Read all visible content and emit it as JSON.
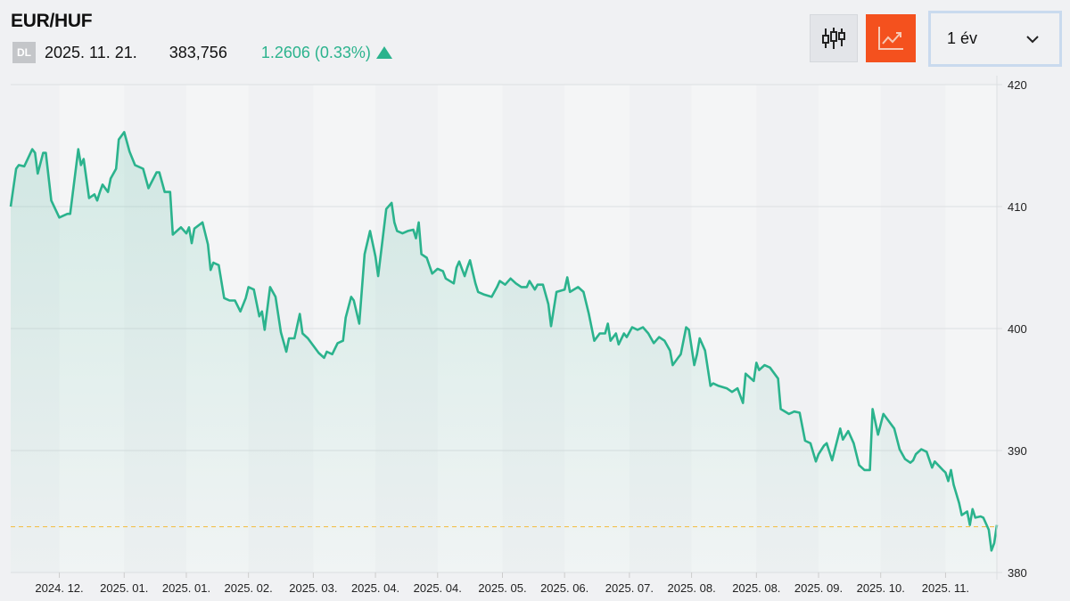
{
  "header": {
    "title": "EUR/HUF",
    "badge": "DL",
    "date": "2025. 11. 21.",
    "price": "383,756",
    "change": "1.2606 (0.33%)",
    "change_direction": "up"
  },
  "toolbar": {
    "candlestick_icon": "candlestick-chart-icon",
    "line_icon": "line-chart-icon",
    "period_selected": "1 év"
  },
  "colors": {
    "line": "#2bb38d",
    "up": "#2bb38d",
    "active_button": "#f4511e",
    "reference_line": "#f2c14e"
  },
  "chart_data": {
    "type": "area",
    "title": "EUR/HUF",
    "xlabel": "",
    "ylabel": "",
    "xlim_days": [
      0,
      365
    ],
    "ylim": [
      380,
      420
    ],
    "yticks": [
      420,
      410,
      400,
      390,
      380
    ],
    "xtick_labels": [
      "2024. 12.",
      "2025. 01.",
      "2025. 01.",
      "2025. 02.",
      "2025. 03.",
      "2025. 04.",
      "2025. 04.",
      "2025. 05.",
      "2025. 06.",
      "2025. 07.",
      "2025. 08.",
      "2025. 08.",
      "2025. 09.",
      "2025. 10.",
      "2025. 11."
    ],
    "xtick_days": [
      18,
      42,
      65,
      88,
      112,
      135,
      158,
      182,
      205,
      229,
      252,
      276,
      299,
      322,
      346
    ],
    "reference_value": 383.756,
    "grid": true,
    "axis_position": "right",
    "points": [
      [
        0,
        410.0
      ],
      [
        2,
        413.1
      ],
      [
        3,
        413.4
      ],
      [
        5,
        413.3
      ],
      [
        8,
        414.7
      ],
      [
        9,
        414.4
      ],
      [
        10,
        412.7
      ],
      [
        12,
        414.4
      ],
      [
        13,
        414.4
      ],
      [
        15,
        410.5
      ],
      [
        18,
        409.1
      ],
      [
        21,
        409.4
      ],
      [
        22,
        409.4
      ],
      [
        25,
        414.7
      ],
      [
        26,
        413.4
      ],
      [
        27,
        413.9
      ],
      [
        29,
        410.7
      ],
      [
        31,
        411.0
      ],
      [
        32,
        410.5
      ],
      [
        33,
        411.2
      ],
      [
        34,
        411.8
      ],
      [
        36,
        411.2
      ],
      [
        37,
        412.3
      ],
      [
        39,
        413.1
      ],
      [
        40,
        415.5
      ],
      [
        42,
        416.1
      ],
      [
        44,
        414.5
      ],
      [
        46,
        413.4
      ],
      [
        49,
        413.1
      ],
      [
        51,
        411.5
      ],
      [
        54,
        412.8
      ],
      [
        55,
        412.8
      ],
      [
        57,
        411.2
      ],
      [
        59,
        411.2
      ],
      [
        60,
        407.7
      ],
      [
        63,
        408.3
      ],
      [
        65,
        407.8
      ],
      [
        66,
        408.3
      ],
      [
        67,
        407.0
      ],
      [
        68,
        408.2
      ],
      [
        71,
        408.7
      ],
      [
        73,
        406.9
      ],
      [
        74,
        404.8
      ],
      [
        75,
        405.4
      ],
      [
        77,
        405.2
      ],
      [
        79,
        402.5
      ],
      [
        81,
        402.3
      ],
      [
        83,
        402.3
      ],
      [
        85,
        401.4
      ],
      [
        87,
        402.5
      ],
      [
        88,
        403.4
      ],
      [
        90,
        403.2
      ],
      [
        92,
        401.0
      ],
      [
        93,
        401.4
      ],
      [
        94,
        399.9
      ],
      [
        96,
        403.4
      ],
      [
        98,
        402.6
      ],
      [
        100,
        399.7
      ],
      [
        102,
        398.1
      ],
      [
        103,
        399.2
      ],
      [
        105,
        399.2
      ],
      [
        107,
        401.2
      ],
      [
        108,
        399.6
      ],
      [
        110,
        399.2
      ],
      [
        114,
        398.0
      ],
      [
        116,
        397.6
      ],
      [
        117,
        398.1
      ],
      [
        119,
        397.9
      ],
      [
        121,
        398.8
      ],
      [
        123,
        399.0
      ],
      [
        124,
        400.9
      ],
      [
        126,
        402.6
      ],
      [
        127,
        402.3
      ],
      [
        129,
        400.4
      ],
      [
        131,
        406.1
      ],
      [
        133,
        408.0
      ],
      [
        135,
        405.9
      ],
      [
        136,
        404.3
      ],
      [
        137,
        406.1
      ],
      [
        139,
        409.8
      ],
      [
        141,
        410.3
      ],
      [
        142,
        408.7
      ],
      [
        143,
        408.0
      ],
      [
        145,
        407.8
      ],
      [
        147,
        408.0
      ],
      [
        149,
        408.1
      ],
      [
        150,
        407.4
      ],
      [
        151,
        408.7
      ],
      [
        152,
        406.1
      ],
      [
        154,
        405.8
      ],
      [
        156,
        404.5
      ],
      [
        158,
        404.9
      ],
      [
        160,
        404.7
      ],
      [
        161,
        404.1
      ],
      [
        164,
        403.7
      ],
      [
        165,
        405.0
      ],
      [
        166,
        405.5
      ],
      [
        168,
        404.3
      ],
      [
        169,
        405.0
      ],
      [
        170,
        405.6
      ],
      [
        172,
        403.7
      ],
      [
        173,
        403.0
      ],
      [
        175,
        402.8
      ],
      [
        178,
        402.6
      ],
      [
        180,
        403.4
      ],
      [
        181,
        403.9
      ],
      [
        183,
        403.6
      ],
      [
        185,
        404.1
      ],
      [
        187,
        403.7
      ],
      [
        189,
        403.4
      ],
      [
        191,
        403.4
      ],
      [
        192,
        403.9
      ],
      [
        194,
        403.2
      ],
      [
        195,
        403.6
      ],
      [
        197,
        403.6
      ],
      [
        199,
        402.0
      ],
      [
        200,
        400.2
      ],
      [
        202,
        403.0
      ],
      [
        205,
        403.2
      ],
      [
        206,
        404.2
      ],
      [
        207,
        403.0
      ],
      [
        210,
        403.4
      ],
      [
        212,
        403.0
      ],
      [
        214,
        401.2
      ],
      [
        216,
        399.0
      ],
      [
        218,
        399.6
      ],
      [
        220,
        399.6
      ],
      [
        221,
        400.4
      ],
      [
        222,
        399.0
      ],
      [
        224,
        399.6
      ],
      [
        225,
        398.7
      ],
      [
        227,
        399.6
      ],
      [
        228,
        399.3
      ],
      [
        230,
        400.1
      ],
      [
        232,
        399.9
      ],
      [
        234,
        400.1
      ],
      [
        236,
        399.6
      ],
      [
        238,
        398.8
      ],
      [
        240,
        399.3
      ],
      [
        242,
        399.0
      ],
      [
        244,
        398.2
      ],
      [
        245,
        397.0
      ],
      [
        247,
        397.6
      ],
      [
        248,
        397.9
      ],
      [
        250,
        400.1
      ],
      [
        251,
        399.9
      ],
      [
        253,
        397.0
      ],
      [
        254,
        397.9
      ],
      [
        255,
        399.2
      ],
      [
        257,
        398.2
      ],
      [
        259,
        395.3
      ],
      [
        260,
        395.5
      ],
      [
        262,
        395.3
      ],
      [
        265,
        395.1
      ],
      [
        267,
        394.8
      ],
      [
        269,
        395.1
      ],
      [
        271,
        393.9
      ],
      [
        272,
        396.3
      ],
      [
        275,
        395.7
      ],
      [
        276,
        397.2
      ],
      [
        277,
        396.6
      ],
      [
        279,
        397.0
      ],
      [
        281,
        396.8
      ],
      [
        284,
        395.9
      ],
      [
        285,
        393.4
      ],
      [
        288,
        393.0
      ],
      [
        290,
        393.2
      ],
      [
        292,
        393.1
      ],
      [
        294,
        390.8
      ],
      [
        296,
        390.6
      ],
      [
        298,
        389.1
      ],
      [
        299,
        389.7
      ],
      [
        301,
        390.4
      ],
      [
        302,
        390.6
      ],
      [
        304,
        389.2
      ],
      [
        307,
        391.8
      ],
      [
        308,
        390.9
      ],
      [
        310,
        391.6
      ],
      [
        312,
        390.6
      ],
      [
        314,
        388.8
      ],
      [
        316,
        388.4
      ],
      [
        318,
        388.4
      ],
      [
        319,
        393.4
      ],
      [
        321,
        391.3
      ],
      [
        323,
        393.0
      ],
      [
        327,
        391.8
      ],
      [
        329,
        390.1
      ],
      [
        331,
        389.3
      ],
      [
        333,
        389.0
      ],
      [
        334,
        389.2
      ],
      [
        335,
        389.7
      ],
      [
        337,
        390.1
      ],
      [
        339,
        389.9
      ],
      [
        341,
        388.6
      ],
      [
        342,
        389.1
      ],
      [
        345,
        388.4
      ],
      [
        346,
        388.2
      ],
      [
        347,
        387.5
      ],
      [
        348,
        388.4
      ],
      [
        349,
        387.2
      ],
      [
        351,
        385.7
      ],
      [
        352,
        384.7
      ],
      [
        354,
        385.0
      ],
      [
        355,
        383.9
      ],
      [
        356,
        385.2
      ],
      [
        357,
        384.5
      ],
      [
        359,
        384.6
      ],
      [
        360,
        384.5
      ],
      [
        362,
        383.5
      ],
      [
        363,
        381.8
      ],
      [
        364,
        382.4
      ],
      [
        365,
        383.9
      ]
    ]
  }
}
